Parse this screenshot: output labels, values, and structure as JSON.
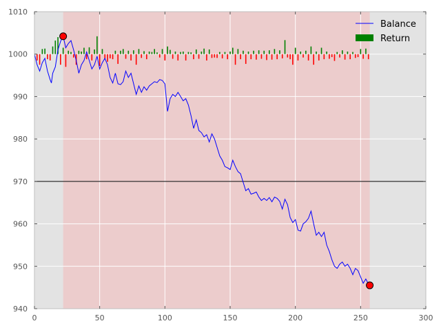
{
  "chart_data": {
    "type": "line",
    "title": "",
    "xlabel": "",
    "ylabel": "",
    "xlim": [
      0,
      300
    ],
    "ylim": [
      940,
      1010
    ],
    "x_ticks": [
      0,
      50,
      100,
      150,
      200,
      250,
      300
    ],
    "y_ticks": [
      940,
      950,
      960,
      970,
      980,
      990,
      1000,
      1010
    ],
    "grid": true,
    "legend_position": "top-right",
    "shaded_range": [
      22,
      257
    ],
    "reference_line": 970,
    "baseline": 1000,
    "colors": {
      "background": "#e3e3e3",
      "shade": "#eccccc",
      "grid": "#ffffff",
      "balance": "#0000ff",
      "return_positive": "#008000",
      "return_negative": "#ff0000",
      "reference": "#000000",
      "marker": "#ff0000"
    },
    "series": [
      {
        "name": "Balance",
        "type": "line",
        "x": [
          0,
          2,
          4,
          6,
          8,
          10,
          12,
          13,
          14,
          16,
          18,
          20,
          22,
          24,
          26,
          28,
          30,
          32,
          34,
          36,
          38,
          40,
          42,
          44,
          46,
          48,
          50,
          52,
          54,
          56,
          58,
          60,
          62,
          64,
          66,
          68,
          70,
          72,
          74,
          76,
          78,
          80,
          82,
          84,
          86,
          88,
          90,
          92,
          94,
          96,
          98,
          100,
          102,
          104,
          106,
          108,
          110,
          112,
          114,
          116,
          118,
          120,
          122,
          124,
          126,
          128,
          130,
          132,
          134,
          136,
          138,
          140,
          142,
          144,
          146,
          148,
          150,
          152,
          154,
          156,
          158,
          160,
          162,
          164,
          166,
          168,
          170,
          172,
          174,
          176,
          178,
          180,
          182,
          184,
          186,
          188,
          190,
          192,
          194,
          196,
          198,
          200,
          202,
          204,
          206,
          208,
          210,
          212,
          214,
          216,
          218,
          220,
          222,
          224,
          226,
          228,
          230,
          232,
          234,
          236,
          238,
          240,
          242,
          244,
          246,
          248,
          250,
          252,
          254,
          256,
          257
        ],
        "values": [
          1000,
          997.5,
          996,
          998,
          999,
          996,
          994,
          993.2,
          995.5,
          997,
          1001,
          1003,
          1004.2,
          1001.5,
          1002.5,
          1003.2,
          1001,
          998.5,
          995.5,
          997.5,
          998.5,
          1000.5,
          998.5,
          996.5,
          997.5,
          999.5,
          996.5,
          998,
          999,
          997.5,
          994.5,
          993.2,
          995.5,
          993,
          992.8,
          993.5,
          996,
          994.5,
          995.5,
          993,
          990.5,
          992.5,
          991,
          992.3,
          991.5,
          992.5,
          993,
          993.5,
          993.3,
          994,
          993.8,
          993,
          986.5,
          989.5,
          990.5,
          990,
          991,
          990,
          989,
          989.5,
          988,
          985.5,
          982.5,
          984.5,
          982,
          981.5,
          980.5,
          981,
          979.3,
          981.2,
          980,
          978,
          976,
          975,
          973.5,
          973.2,
          972.8,
          975,
          973.5,
          972.3,
          971.8,
          969.8,
          967.8,
          968.3,
          967,
          967.2,
          967.5,
          966.3,
          965.5,
          966,
          965.5,
          966.2,
          965.2,
          966.3,
          966,
          965.3,
          963.5,
          965.8,
          964.5,
          961.5,
          960.3,
          961,
          958.5,
          958.3,
          960,
          960.5,
          961.3,
          963,
          960,
          957.3,
          958,
          957,
          958,
          955,
          953.5,
          951.5,
          950,
          949.5,
          950.5,
          951,
          950,
          950.5,
          949.5,
          948,
          949.5,
          949,
          947.5,
          946,
          947,
          945.8,
          945.5
        ]
      },
      {
        "name": "Return",
        "type": "bar",
        "baseline": 1000,
        "x": [
          2,
          4,
          6,
          8,
          10,
          12,
          14,
          16,
          18,
          20,
          22,
          24,
          26,
          28,
          30,
          32,
          34,
          36,
          38,
          40,
          42,
          44,
          46,
          48,
          50,
          52,
          54,
          56,
          58,
          60,
          62,
          64,
          66,
          68,
          70,
          72,
          74,
          76,
          78,
          80,
          82,
          84,
          86,
          88,
          90,
          92,
          94,
          96,
          98,
          100,
          102,
          104,
          106,
          108,
          110,
          112,
          114,
          116,
          118,
          120,
          122,
          124,
          126,
          128,
          130,
          132,
          134,
          136,
          138,
          140,
          142,
          144,
          146,
          148,
          150,
          152,
          154,
          156,
          158,
          160,
          162,
          164,
          166,
          168,
          170,
          172,
          174,
          176,
          178,
          180,
          182,
          184,
          186,
          188,
          190,
          192,
          194,
          196,
          198,
          200,
          202,
          204,
          206,
          208,
          210,
          212,
          214,
          216,
          218,
          220,
          222,
          224,
          226,
          228,
          230,
          232,
          234,
          236,
          238,
          240,
          242,
          244,
          246,
          248,
          250,
          252,
          254,
          256
        ],
        "values": [
          -1.5,
          -2.5,
          1.2,
          1.3,
          -1.2,
          -1.5,
          1.8,
          3.2,
          4,
          -2.5,
          1.5,
          -3,
          0.8,
          0.5,
          -0.8,
          -2.5,
          0.8,
          0.6,
          1.5,
          -1.2,
          1.6,
          -1.5,
          1.1,
          4.2,
          -2.8,
          1.2,
          -1.1,
          -1.8,
          -1,
          -1.2,
          0.8,
          -2.3,
          0.8,
          1.2,
          -1.1,
          0.8,
          -1.5,
          0.9,
          -2.5,
          1.2,
          -0.9,
          0.7,
          -1.2,
          0.6,
          0.5,
          1.2,
          0.4,
          -0.8,
          1.2,
          -1.5,
          1.8,
          1,
          -1.1,
          0.6,
          -1.5,
          0.5,
          0.6,
          -1.5,
          0.5,
          0.4,
          -1.2,
          1.1,
          -1.1,
          0.6,
          1.3,
          -1.5,
          1.1,
          -0.9,
          -0.8,
          -0.9,
          0.5,
          -1,
          0.5,
          -1.2,
          0.6,
          1.5,
          -2.5,
          1.2,
          -1.2,
          0.8,
          -2.3,
          0.6,
          -1.2,
          0.8,
          -1.3,
          0.9,
          -1.1,
          0.8,
          -1.4,
          0.9,
          -1.3,
          1.2,
          -1.2,
          0.9,
          -1,
          3.3,
          -0.8,
          -1.2,
          -2.5,
          1.5,
          -1.5,
          0.6,
          -0.8,
          0.8,
          -1.5,
          1.8,
          -2.5,
          0.6,
          -1.5,
          1.5,
          -1.2,
          0.6,
          -1.1,
          -0.7,
          -1.6,
          0.5,
          -0.8,
          0.9,
          -1.3,
          0.6,
          -1.2,
          0.5,
          -0.9,
          -0.7,
          1.2,
          -1.1,
          1.3,
          -1.2
        ]
      }
    ],
    "markers": [
      {
        "x": 22,
        "y": 1004.2
      },
      {
        "x": 257,
        "y": 945.5
      }
    ],
    "legend": [
      {
        "label": "Balance",
        "kind": "line"
      },
      {
        "label": "Return",
        "kind": "patch"
      }
    ]
  }
}
